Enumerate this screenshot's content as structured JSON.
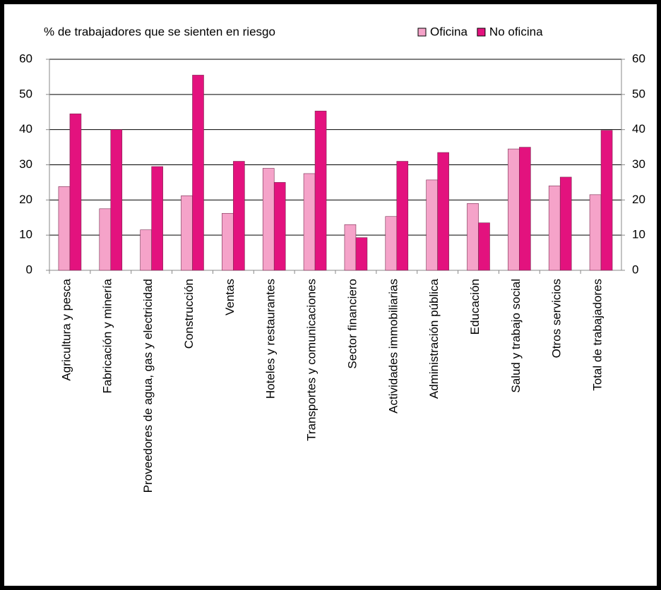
{
  "chart_data": {
    "type": "bar",
    "title": "% de trabajadores que se sienten en riesgo",
    "categories": [
      "Agricultura y pesca",
      "Fabricación y minería",
      "Proveedores de agua, gas y electricidad",
      "Construcción",
      "Ventas",
      "Hoteles y restaurantes",
      "Transportes y comunicaciones",
      "Sector financiero",
      "Actividades immobiliarias",
      "Administración pública",
      "Educación",
      "Salud y trabajo social",
      "Otros servicios",
      "Total de trabajadores"
    ],
    "series": [
      {
        "name": "Oficina",
        "color": "#f5a3c9",
        "values": [
          23.8,
          17.5,
          11.5,
          21.2,
          16.2,
          29,
          27.5,
          13,
          15.3,
          25.7,
          19,
          34.5,
          24,
          21.5
        ]
      },
      {
        "name": "No oficina",
        "color": "#e3127e",
        "values": [
          44.5,
          40,
          29.5,
          55.5,
          31,
          25,
          45.3,
          9.3,
          31,
          33.5,
          13.5,
          35,
          26.5,
          39.8
        ]
      }
    ],
    "ylim": [
      0,
      60
    ],
    "yticks": [
      0,
      10,
      20,
      30,
      40,
      50,
      60
    ],
    "y2lim": [
      0,
      60
    ],
    "y2ticks": [
      0,
      10,
      20,
      30,
      40,
      50,
      60
    ],
    "grid": true,
    "legend": "top-right"
  }
}
